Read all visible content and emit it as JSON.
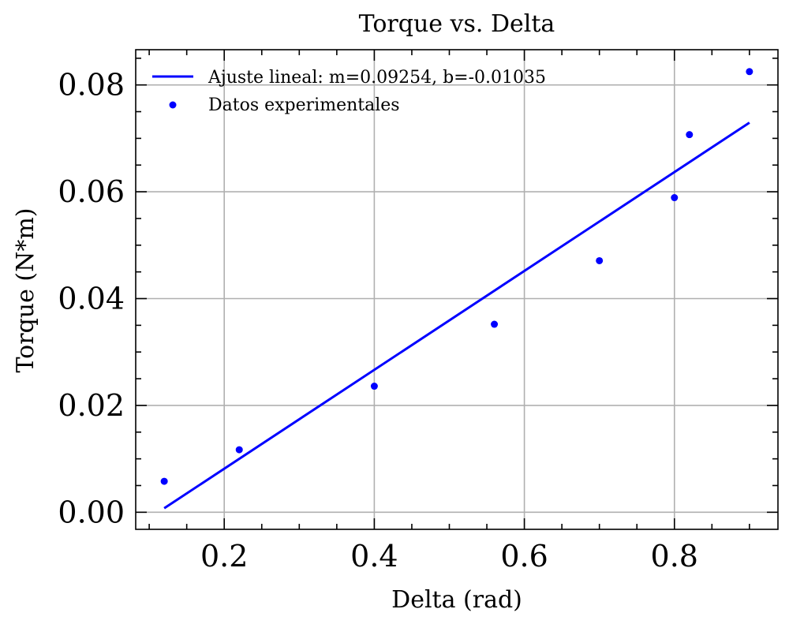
{
  "chart_data": {
    "type": "scatter",
    "title": "Torque vs. Delta",
    "xlabel": "Delta (rad)",
    "ylabel": "Torque (N*m)",
    "xlim": [
      0.082,
      0.938
    ],
    "ylim": [
      -0.0032,
      0.0866
    ],
    "xticks": [
      0.2,
      0.4,
      0.6,
      0.8
    ],
    "xtick_labels": [
      "0.2",
      "0.4",
      "0.6",
      "0.8"
    ],
    "yticks": [
      0.0,
      0.02,
      0.04,
      0.06,
      0.08
    ],
    "ytick_labels": [
      "0.00",
      "0.02",
      "0.04",
      "0.06",
      "0.08"
    ],
    "grid": true,
    "legend_position": "top-left",
    "series": [
      {
        "name": "Ajuste lineal: m=0.09254, b=-0.01035",
        "kind": "line",
        "color": "#0000ff",
        "x": [
          0.12,
          0.9
        ],
        "y": [
          0.00075,
          0.07294
        ]
      },
      {
        "name": "Datos experimentales",
        "kind": "scatter",
        "color": "#0000ff",
        "x": [
          0.12,
          0.22,
          0.4,
          0.56,
          0.7,
          0.8,
          0.82,
          0.9
        ],
        "y": [
          0.0058,
          0.0117,
          0.0236,
          0.0352,
          0.0471,
          0.0589,
          0.0707,
          0.0825
        ]
      }
    ]
  }
}
